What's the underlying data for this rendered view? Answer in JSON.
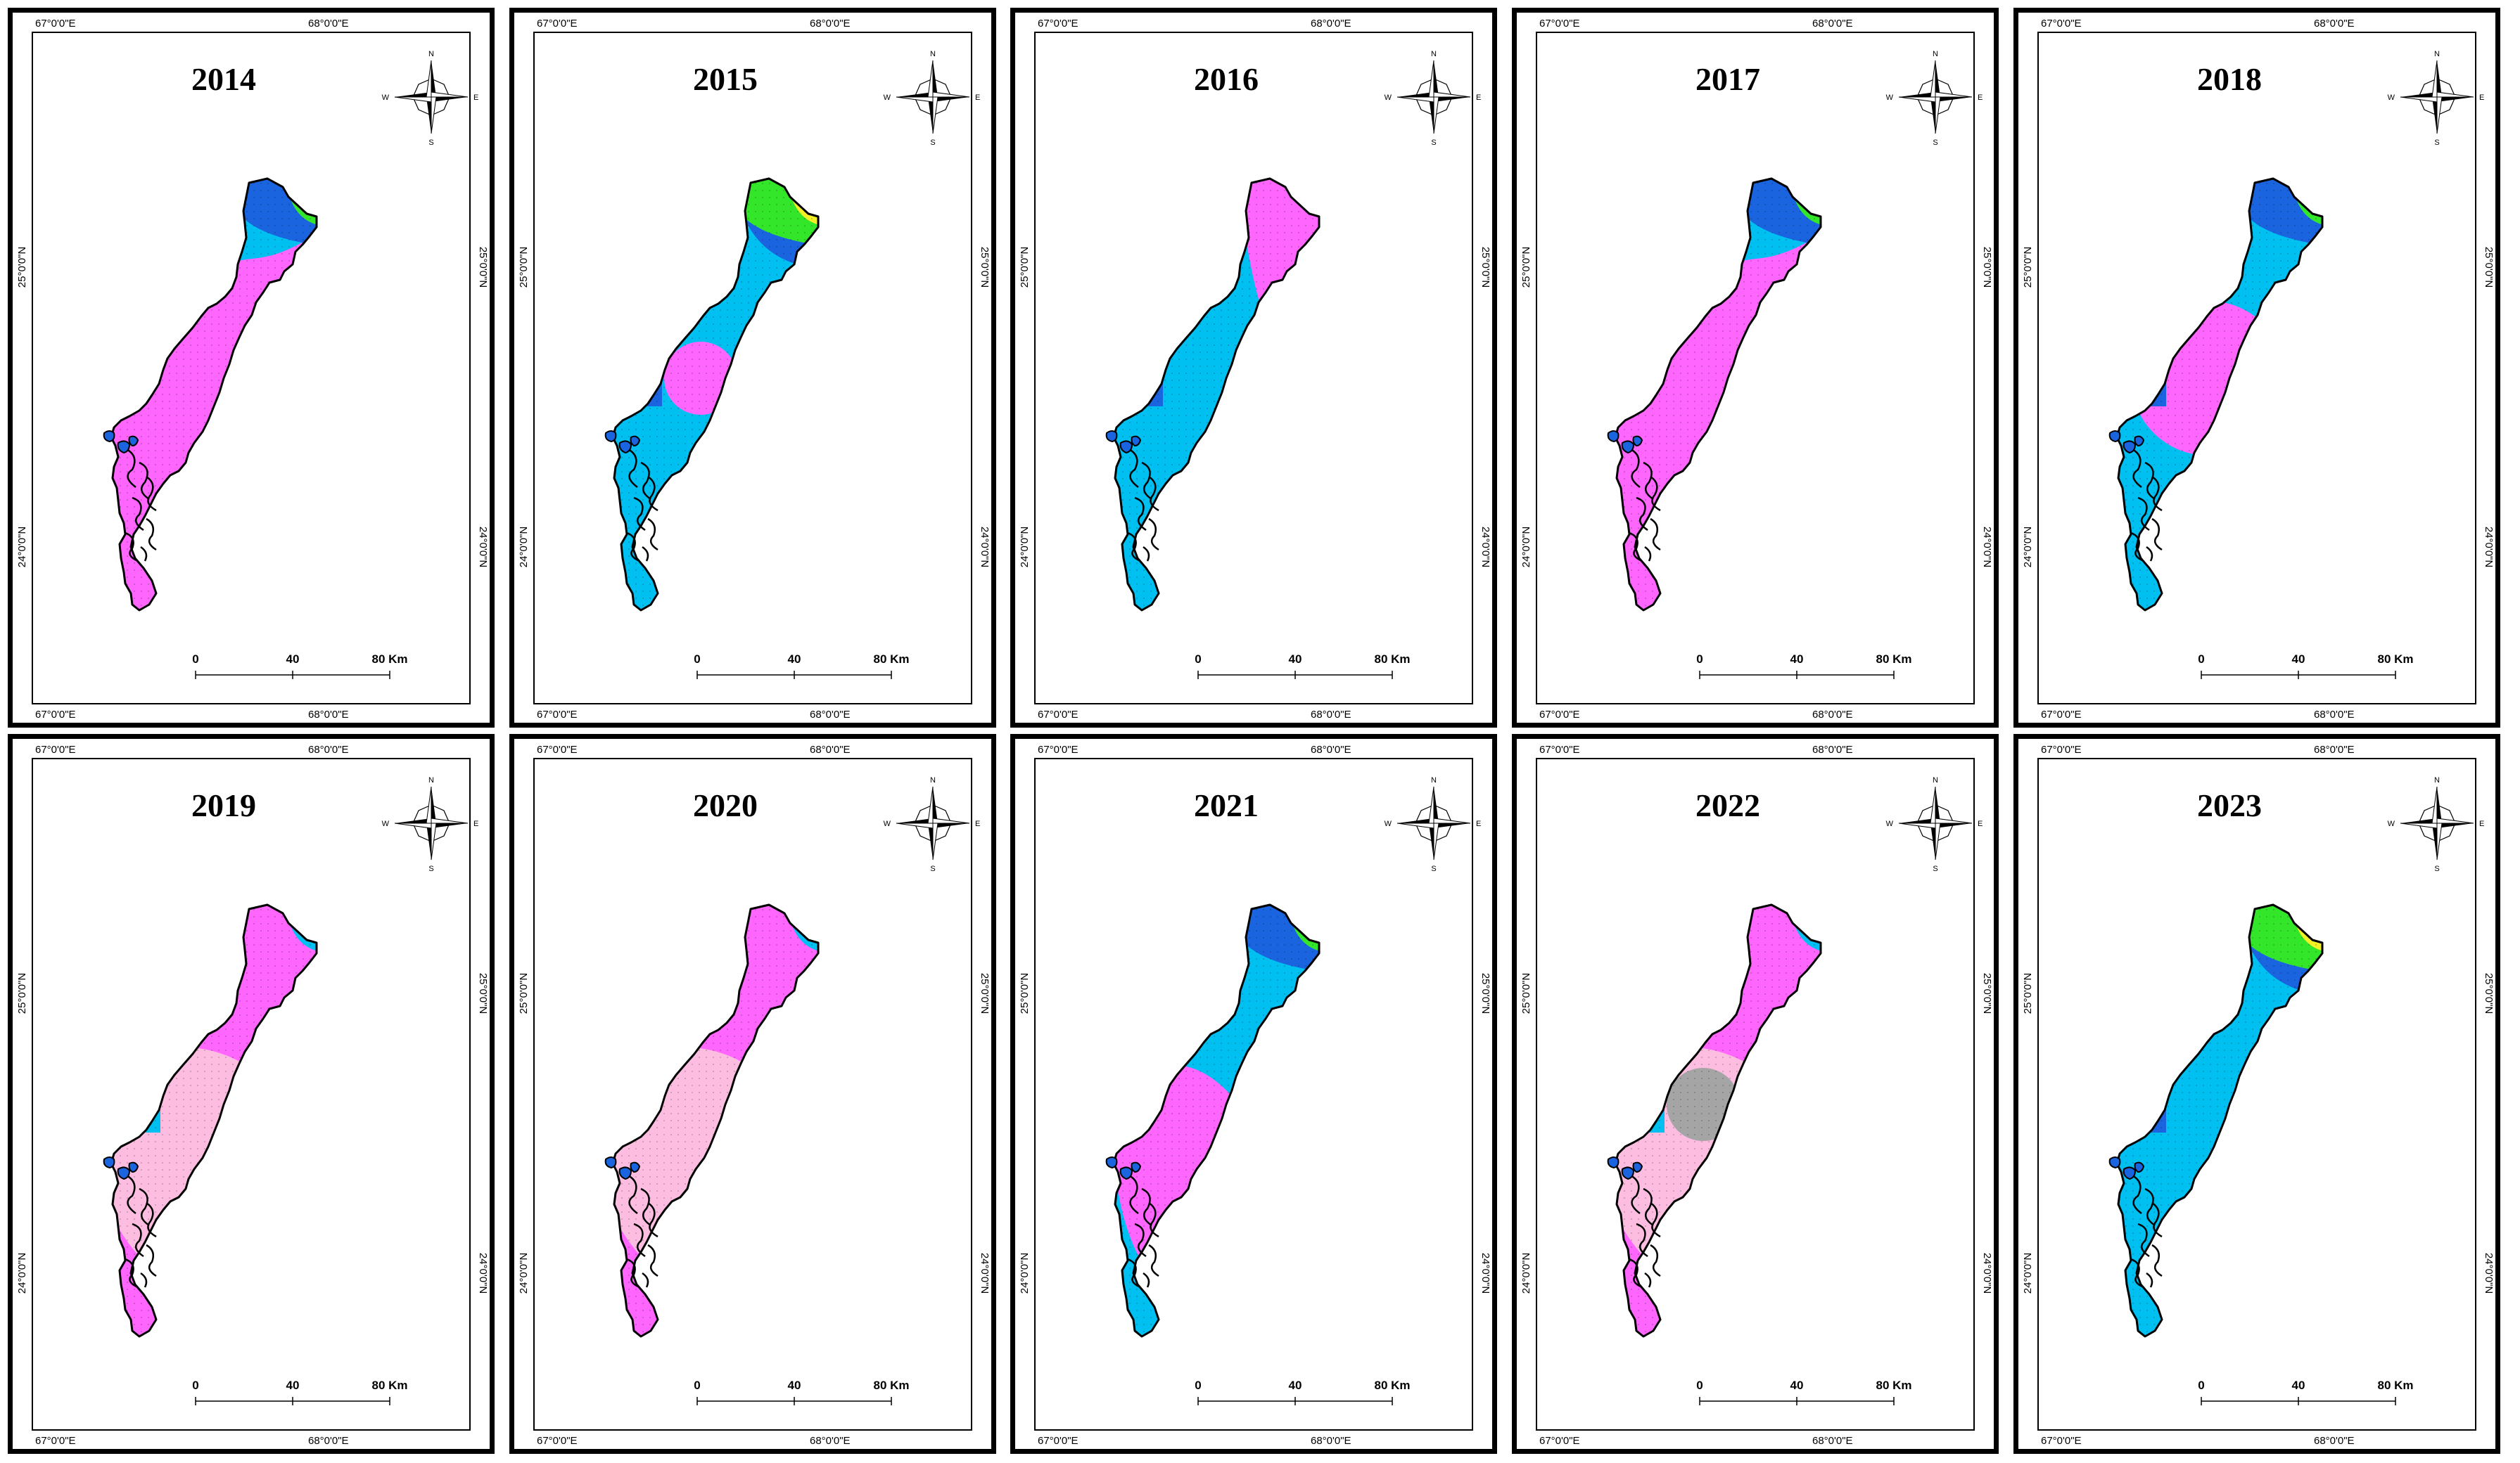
{
  "colors": {
    "magenta": "#fe66fe",
    "light_pink": "#fcbde0",
    "sky_blue": "#00c0f2",
    "blue": "#1a64e0",
    "green": "#33e62a",
    "yellow": "#f4f026",
    "orange": "#f7941d",
    "gray": "#a5a5a5"
  },
  "labels": {
    "lon_left": "67°0'0\"E",
    "lon_right": "68°0'0\"E",
    "lat_top": "25°0'0\"N",
    "lat_bottom": "24°0'0\"N",
    "scale_0": "0",
    "scale_40": "40",
    "scale_80": "80 Km",
    "compass_n": "N",
    "compass_s": "S",
    "compass_e": "E",
    "compass_w": "W"
  },
  "panels": [
    {
      "year": "2014",
      "zones": [
        {
          "class": "sky_blue",
          "shape": "base"
        },
        {
          "class": "magenta",
          "shape": "southwest_band"
        },
        {
          "class": "blue",
          "shape": "northeast_cap"
        },
        {
          "class": "green",
          "shape": "northeast_tip"
        }
      ]
    },
    {
      "year": "2015",
      "zones": [
        {
          "class": "sky_blue",
          "shape": "base"
        },
        {
          "class": "blue",
          "shape": "northeast_wide"
        },
        {
          "class": "green",
          "shape": "northeast_cap"
        },
        {
          "class": "yellow",
          "shape": "northeast_tip"
        },
        {
          "class": "magenta",
          "shape": "center_circle"
        },
        {
          "class": "blue",
          "shape": "islands"
        }
      ]
    },
    {
      "year": "2016",
      "zones": [
        {
          "class": "sky_blue",
          "shape": "base"
        },
        {
          "class": "magenta",
          "shape": "northeast_lobe"
        },
        {
          "class": "blue",
          "shape": "islands"
        }
      ]
    },
    {
      "year": "2017",
      "zones": [
        {
          "class": "sky_blue",
          "shape": "base"
        },
        {
          "class": "magenta",
          "shape": "southwest_band"
        },
        {
          "class": "blue",
          "shape": "northeast_cap"
        },
        {
          "class": "green",
          "shape": "northeast_tip"
        }
      ]
    },
    {
      "year": "2018",
      "zones": [
        {
          "class": "sky_blue",
          "shape": "base"
        },
        {
          "class": "magenta",
          "shape": "center_large_circle"
        },
        {
          "class": "blue",
          "shape": "northeast_cap"
        },
        {
          "class": "green",
          "shape": "northeast_tip"
        },
        {
          "class": "blue",
          "shape": "islands"
        }
      ]
    },
    {
      "year": "2019",
      "zones": [
        {
          "class": "magenta",
          "shape": "base"
        },
        {
          "class": "light_pink",
          "shape": "center_oval"
        },
        {
          "class": "sky_blue",
          "shape": "northeast_tip"
        },
        {
          "class": "sky_blue",
          "shape": "islands"
        }
      ]
    },
    {
      "year": "2020",
      "zones": [
        {
          "class": "magenta",
          "shape": "base"
        },
        {
          "class": "light_pink",
          "shape": "center_oval"
        },
        {
          "class": "sky_blue",
          "shape": "northeast_tip"
        }
      ]
    },
    {
      "year": "2021",
      "zones": [
        {
          "class": "sky_blue",
          "shape": "base"
        },
        {
          "class": "magenta",
          "shape": "center_oval_west"
        },
        {
          "class": "blue",
          "shape": "northeast_cap"
        },
        {
          "class": "green",
          "shape": "northeast_tip"
        }
      ]
    },
    {
      "year": "2022",
      "zones": [
        {
          "class": "magenta",
          "shape": "base"
        },
        {
          "class": "light_pink",
          "shape": "center_oval"
        },
        {
          "class": "gray",
          "shape": "center_circle"
        },
        {
          "class": "sky_blue",
          "shape": "northeast_tip"
        },
        {
          "class": "sky_blue",
          "shape": "islands"
        }
      ]
    },
    {
      "year": "2023",
      "zones": [
        {
          "class": "sky_blue",
          "shape": "base"
        },
        {
          "class": "blue",
          "shape": "northeast_wide"
        },
        {
          "class": "green",
          "shape": "northeast_cap"
        },
        {
          "class": "yellow",
          "shape": "northeast_tip"
        },
        {
          "class": "blue",
          "shape": "islands"
        }
      ]
    }
  ]
}
